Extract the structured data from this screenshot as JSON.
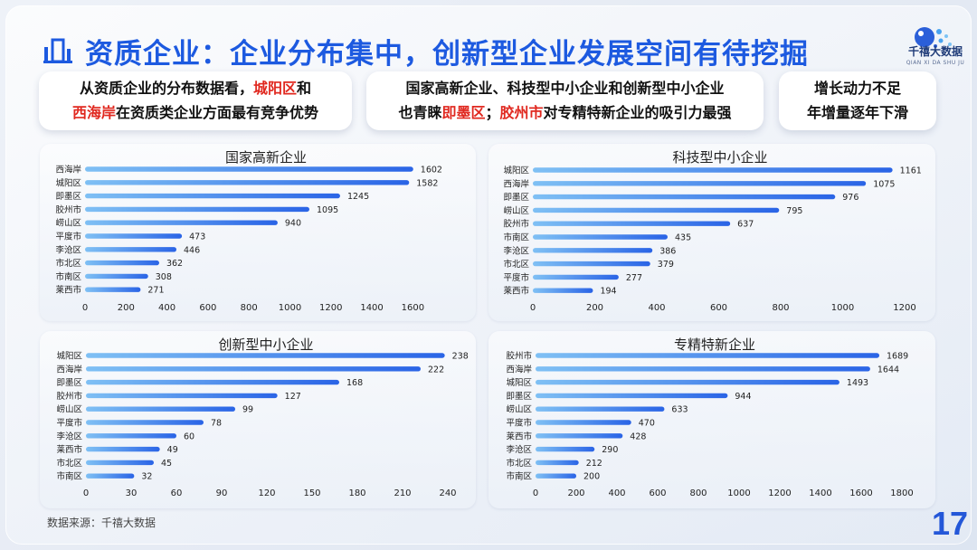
{
  "header": {
    "title": "资质企业：企业分布集中，创新型企业发展空间有待挖掘",
    "logo_name": "千禧大数据",
    "logo_sub": "QIAN XI DA SHU JU"
  },
  "callouts": {
    "c1": {
      "l1a": "从资质企业的分布数据看，",
      "l1b": "城阳区",
      "l1c": "和",
      "l2a": "西海岸",
      "l2b": "在资质类企业方面最有竞争优势"
    },
    "c2": {
      "l1": "国家高新企业、科技型中小企业和创新型中小企业",
      "l2a": "也青睐",
      "l2b": "即墨区",
      "l2c": "；",
      "l2d": "胶州市",
      "l2e": "对专精特新企业的吸引力最强"
    },
    "c3": {
      "l1": "增长动力不足",
      "l2": "年增量逐年下滑"
    }
  },
  "colors": {
    "bar_start": "#2a64e6",
    "bar_end": "#7fc0f4",
    "title": "#1d5ae0",
    "highlight": "#e0281f"
  },
  "chart_data": [
    {
      "type": "bar",
      "title": "国家高新企业",
      "categories": [
        "西海岸",
        "城阳区",
        "即墨区",
        "胶州市",
        "崂山区",
        "平度市",
        "李沧区",
        "市北区",
        "市南区",
        "莱西市"
      ],
      "values": [
        1602,
        1582,
        1245,
        1095,
        940,
        473,
        446,
        362,
        308,
        271
      ],
      "ticks": [
        0,
        200,
        400,
        600,
        800,
        1000,
        1200,
        1400,
        1600
      ],
      "xlim": [
        0,
        1700
      ]
    },
    {
      "type": "bar",
      "title": "科技型中小企业",
      "categories": [
        "城阳区",
        "西海岸",
        "即墨区",
        "崂山区",
        "胶州市",
        "市南区",
        "李沧区",
        "市北区",
        "平度市",
        "莱西市"
      ],
      "values": [
        1161,
        1075,
        976,
        795,
        637,
        435,
        386,
        379,
        277,
        194
      ],
      "ticks": [
        0,
        200,
        400,
        600,
        800,
        1000,
        1200
      ],
      "xlim": [
        0,
        1200
      ]
    },
    {
      "type": "bar",
      "title": "创新型中小企业",
      "categories": [
        "城阳区",
        "西海岸",
        "即墨区",
        "胶州市",
        "崂山区",
        "平度市",
        "李沧区",
        "莱西市",
        "市北区",
        "市南区"
      ],
      "values": [
        238,
        222,
        168,
        127,
        99,
        78,
        60,
        49,
        45,
        32
      ],
      "ticks": [
        0,
        30,
        60,
        90,
        120,
        150,
        180,
        210,
        240
      ],
      "xlim": [
        0,
        240
      ]
    },
    {
      "type": "bar",
      "title": "专精特新企业",
      "categories": [
        "胶州市",
        "西海岸",
        "城阳区",
        "即墨区",
        "崂山区",
        "平度市",
        "莱西市",
        "李沧区",
        "市北区",
        "市南区"
      ],
      "values": [
        1689,
        1644,
        1493,
        944,
        633,
        470,
        428,
        290,
        212,
        200
      ],
      "ticks": [
        0,
        200,
        400,
        600,
        800,
        1000,
        1200,
        1400,
        1600,
        1800
      ],
      "xlim": [
        0,
        1800
      ]
    }
  ],
  "footer": {
    "source": "数据来源：千禧大数据",
    "page": "17"
  }
}
